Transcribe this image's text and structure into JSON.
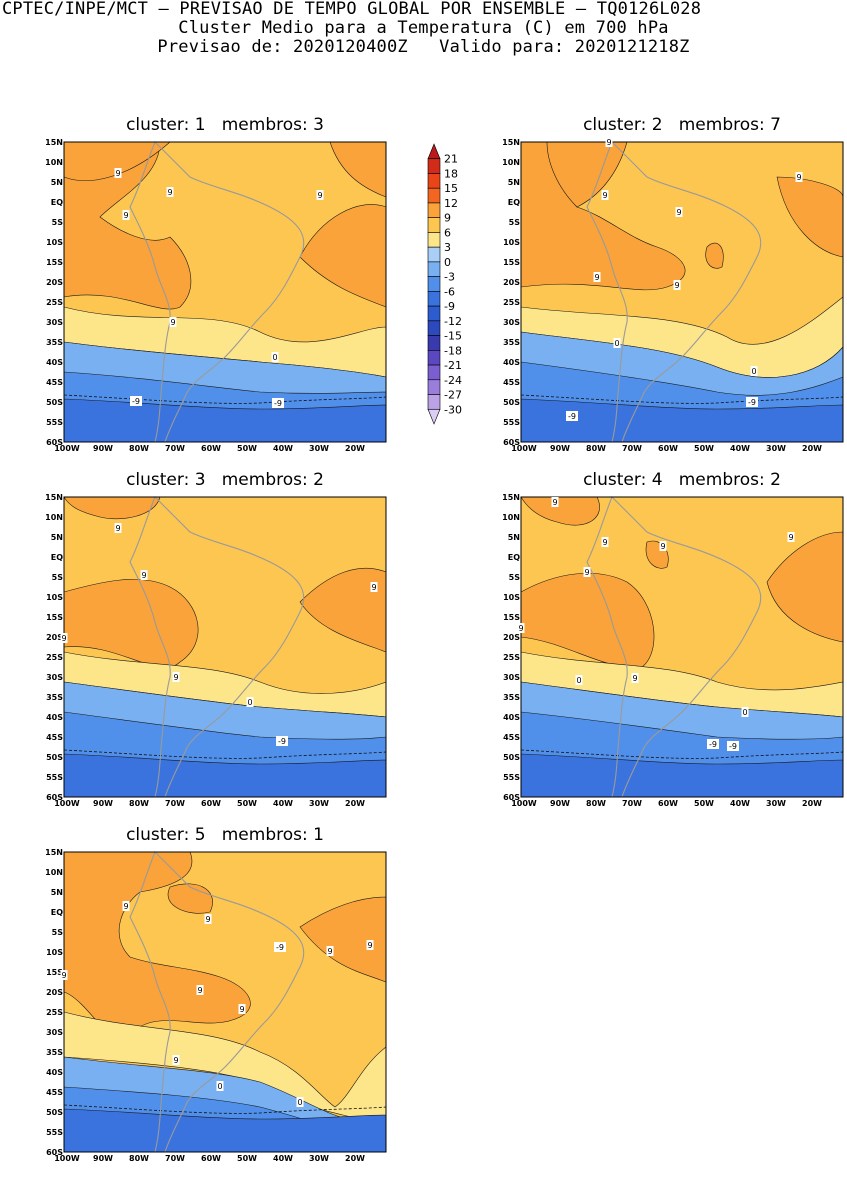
{
  "header": {
    "line1": "CPTEC/INPE/MCT – PREVISAO DE TEMPO GLOBAL POR ENSEMBLE – TQ0126L028",
    "line2": "Cluster Medio para a Temperatura (C) em 700 hPa",
    "line3": "Previsao de: 2020120400Z   Valido para: 2020121218Z"
  },
  "axes": {
    "lat_labels": [
      "15N",
      "10N",
      "5N",
      "EQ",
      "5S",
      "10S",
      "15S",
      "20S",
      "25S",
      "30S",
      "35S",
      "40S",
      "45S",
      "50S",
      "55S",
      "60S"
    ],
    "lon_labels": [
      "100W",
      "90W",
      "80W",
      "70W",
      "60W",
      "50W",
      "40W",
      "30W",
      "20W"
    ]
  },
  "colorbar": {
    "levels": [
      "21",
      "18",
      "15",
      "12",
      "9",
      "6",
      "3",
      "0",
      "-3",
      "-6",
      "-9",
      "-12",
      "-15",
      "-18",
      "-21",
      "-24",
      "-27",
      "-30"
    ],
    "colors": [
      "#b81b1b",
      "#d32b1a",
      "#e94519",
      "#f26621",
      "#f9a33a",
      "#fcc651",
      "#fde58a",
      "#a9cff7",
      "#78b0f1",
      "#5090ea",
      "#3a72de",
      "#2d5bd0",
      "#2c49be",
      "#3a3aaf",
      "#5b47c0",
      "#7b5fd0",
      "#9b7ddc",
      "#bba1e6",
      "#dbcdf3"
    ]
  },
  "panels": [
    {
      "title": "cluster: 1   membros: 3",
      "contour_labels": [
        "9",
        "9",
        "9",
        "9",
        "9",
        "0",
        "-9",
        "-9"
      ]
    },
    {
      "title": "cluster: 2   membros: 7",
      "contour_labels": [
        "9",
        "9",
        "9",
        "9",
        "9",
        "9",
        "0",
        "0",
        "-9",
        "-9"
      ]
    },
    {
      "title": "cluster: 3   membros: 2",
      "contour_labels": [
        "9",
        "9",
        "9",
        "9",
        "9",
        "0",
        "-9"
      ]
    },
    {
      "title": "cluster: 4   membros: 2",
      "contour_labels": [
        "9",
        "9",
        "9",
        "9",
        "9",
        "9",
        "9",
        "0",
        "0",
        "-9",
        "-9"
      ]
    },
    {
      "title": "cluster: 5   membros: 1",
      "contour_labels": [
        "9",
        "9",
        "9",
        "9",
        "9",
        "9",
        "9",
        "9",
        "0",
        "0",
        "-9"
      ]
    }
  ]
}
